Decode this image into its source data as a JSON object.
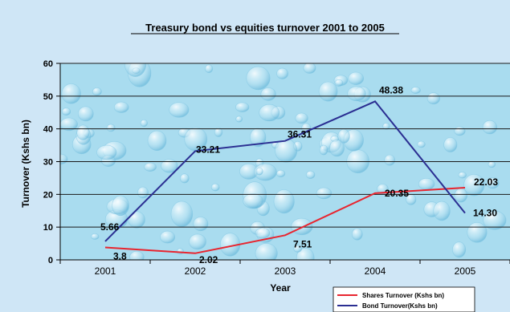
{
  "colors": {
    "background": "#cfe6f6",
    "plot_area": "#a9dcef",
    "gridline": "#1a1a1a",
    "shares": "#e8252f",
    "bond": "#2b2f92"
  },
  "chart_data": {
    "type": "line",
    "title": "Treasury bond vs equities turnover 2001 to 2005",
    "xlabel": "Year",
    "ylabel": "Turnover (Kshs bn)",
    "categories": [
      "2001",
      "2002",
      "2003",
      "2004",
      "2005"
    ],
    "ylim": [
      0,
      60
    ],
    "yticks": [
      "0",
      "10",
      "20",
      "30",
      "40",
      "50",
      "60"
    ],
    "grid": true,
    "legend_position": "bottom-right",
    "series": [
      {
        "name": "Shares Turnover (Kshs bn)",
        "values": [
          3.8,
          2.02,
          7.51,
          20.35,
          22.03
        ],
        "labels": [
          "3.8",
          "2.02",
          "7.51",
          "20.35",
          "22.03"
        ]
      },
      {
        "name": "Bond Turnover(Kshs bn)",
        "values": [
          5.66,
          33.21,
          36.31,
          48.38,
          14.3
        ],
        "labels": [
          "5.66",
          "33.21",
          "36.31",
          "48.38",
          "14.30"
        ]
      }
    ]
  }
}
